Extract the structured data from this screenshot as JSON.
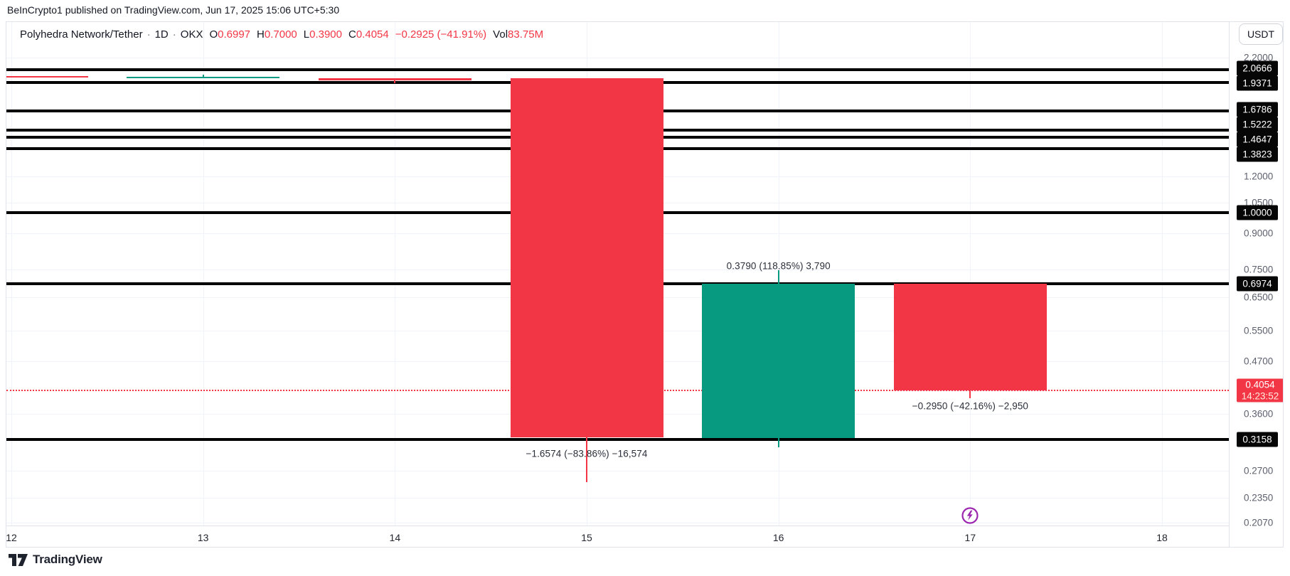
{
  "header": {
    "attribution": "BeInCrypto1 published on TradingView.com, Jun 17, 2025 15:06 UTC+5:30"
  },
  "legend": {
    "symbol": "Polyhedra Network/Tether",
    "separator": "·",
    "interval": "1D",
    "exchange": "OKX",
    "open_label": "O",
    "open": "0.6997",
    "high_label": "H",
    "high": "0.7000",
    "low_label": "L",
    "low": "0.3900",
    "close_label": "C",
    "close": "0.4054",
    "change": "−0.2925 (−41.91%)",
    "volume_label": "Vol",
    "volume": "83.75M"
  },
  "price_axis": {
    "currency": "USDT",
    "gray_ticks": [
      "2.2000",
      "1.2000",
      "1.0500",
      "0.9000",
      "0.7500",
      "0.6500",
      "0.5500",
      "0.4700",
      "0.3600",
      "0.2700",
      "0.2350",
      "0.2070"
    ],
    "black_badges": [
      "2.0666",
      "1.9371",
      "1.6786",
      "1.5222",
      "1.4647",
      "1.3823",
      "1.0000",
      "0.6974",
      "0.3158"
    ],
    "last_price_badge": {
      "price": "0.4054",
      "time": "14:23:52"
    }
  },
  "time_axis": {
    "labels": [
      "12",
      "13",
      "14",
      "15",
      "16",
      "17",
      "18"
    ]
  },
  "footer": {
    "logo_text": "TradingView"
  },
  "colors": {
    "up": "#089981",
    "down": "#f23645",
    "line_black": "#000000",
    "last_price": "#f23645",
    "marker_purple": "#9c27b0"
  },
  "chart_data": {
    "type": "bar",
    "subtype": "candlestick",
    "title": "Polyhedra Network/Tether · 1D · OKX",
    "ylabel": "USDT",
    "scale": "logarithmic",
    "grid": true,
    "x_days": [
      "12",
      "13",
      "14",
      "15",
      "16",
      "17",
      "18"
    ],
    "candles": [
      {
        "day": "12",
        "body_top": 2.0,
        "body_bottom": 1.986,
        "color": "red"
      },
      {
        "day": "13",
        "body_top": 1.993,
        "body_bottom": 1.979,
        "wick_high": 2.015,
        "color": "green"
      },
      {
        "day": "14",
        "body_top": 1.978,
        "body_bottom": 1.958,
        "wick_low": 1.93,
        "color": "red"
      },
      {
        "day": "15",
        "body_top": 1.9774,
        "body_bottom": 0.32,
        "wick_low": 0.2546,
        "color": "red"
      },
      {
        "day": "16",
        "body_top": 0.6979,
        "body_bottom": 0.3189,
        "wick_high": 0.746,
        "wick_low": 0.304,
        "color": "green"
      },
      {
        "day": "17",
        "body_top": 0.6974,
        "body_bottom": 0.4054,
        "wick_low": 0.39,
        "color": "red"
      }
    ],
    "horizontal_lines": [
      2.0666,
      1.9371,
      1.6786,
      1.5222,
      1.4647,
      1.3823,
      1.0,
      0.6974,
      0.3158
    ],
    "gray_ticks": [
      2.2,
      1.2,
      1.05,
      0.9,
      0.75,
      0.65,
      0.55,
      0.47,
      0.36,
      0.27,
      0.235,
      0.207
    ],
    "last_price_line": {
      "price": 0.4054,
      "time": "14:23:52"
    },
    "annotations": [
      {
        "day": "15",
        "text": "−1.6574 (−83.86%) −16,574",
        "price": 0.294
      },
      {
        "day": "16",
        "text": "0.3790 (118.85%) 3,790",
        "price": 0.763
      },
      {
        "day": "17",
        "text": "−0.2950 (−42.16%) −2,950",
        "price": 0.3745
      }
    ],
    "marker": {
      "day": "17",
      "price": 0.215,
      "icon": "flash-icon"
    }
  }
}
